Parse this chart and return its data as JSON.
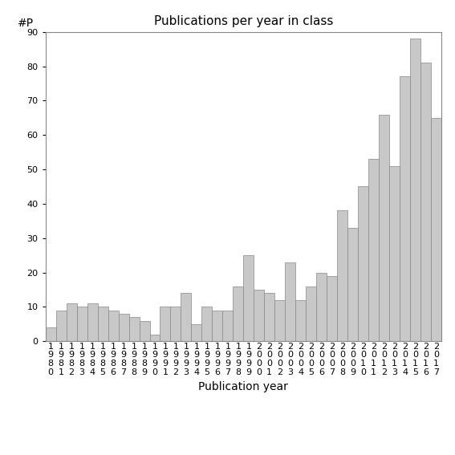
{
  "title": "Publications per year in class",
  "xlabel": "Publication year",
  "ylabel": "#P",
  "years": [
    1980,
    1981,
    1982,
    1983,
    1984,
    1985,
    1986,
    1987,
    1988,
    1989,
    1990,
    1991,
    1992,
    1993,
    1994,
    1995,
    1996,
    1997,
    1998,
    1999,
    2000,
    2001,
    2002,
    2003,
    2004,
    2005,
    2006,
    2007,
    2008,
    2009,
    2010,
    2011,
    2012,
    2013,
    2014,
    2015,
    2016,
    2017
  ],
  "values": [
    4,
    9,
    11,
    10,
    11,
    10,
    9,
    8,
    7,
    6,
    2,
    10,
    10,
    14,
    5,
    10,
    9,
    9,
    16,
    25,
    15,
    14,
    12,
    23,
    12,
    16,
    20,
    19,
    38,
    33,
    45,
    53,
    66,
    51,
    77,
    88,
    81,
    65
  ],
  "bar_color": "#c8c8c8",
  "bar_edgecolor": "#888888",
  "ylim": [
    0,
    90
  ],
  "yticks": [
    0,
    10,
    20,
    30,
    40,
    50,
    60,
    70,
    80,
    90
  ],
  "bg_color": "#ffffff",
  "title_fontsize": 11,
  "axis_label_fontsize": 10,
  "tick_fontsize": 8
}
